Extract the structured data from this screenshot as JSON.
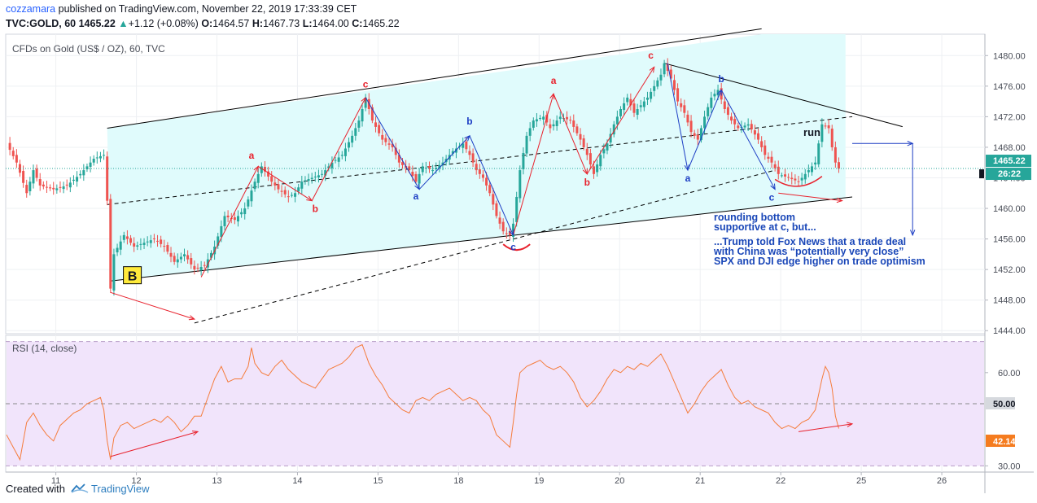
{
  "header": {
    "author": "cozzamara",
    "published": "published on TradingView.com, November 22, 2019 17:33:39 CET",
    "symbol": "TVC:GOLD, 60",
    "last": "1465.22",
    "change": "+1.12 (+0.08%)",
    "o_label": "O:",
    "o": "1464.57",
    "h_label": "H:",
    "h": "1467.73",
    "l_label": "L:",
    "l": "1464.00",
    "c_label": "C:",
    "c": "1465.22"
  },
  "footer": {
    "created_with": "Created with",
    "brand": "TradingView"
  },
  "colors": {
    "up": "#26a69a",
    "down": "#ef5350",
    "channel_fill": "#e0fbfc",
    "rsi_band": "#f1e4fb",
    "rsi_line": "#f57c3b",
    "red_wave": "#e8222d",
    "blue_wave": "#1d3ec4",
    "note_text": "#1a47b8",
    "price_badge": "#26a69a"
  },
  "chart_data": [
    {
      "type": "candlestick",
      "pane_label": "CFDs on Gold (US$ / OZ), 60, TVC",
      "x_ticks": [
        "11",
        "12",
        "13",
        "14",
        "15",
        "18",
        "19",
        "20",
        "21",
        "22",
        "25",
        "26"
      ],
      "y_ticks": [
        "1444.00",
        "1448.00",
        "1452.00",
        "1456.00",
        "1460.00",
        "1464.00",
        "1468.00",
        "1472.00",
        "1476.00",
        "1480.00"
      ],
      "ylim": [
        1443.6,
        1482.8
      ],
      "last_price": "1465.22",
      "countdown": "26:22",
      "path": [
        [
          0,
          1468.5
        ],
        [
          3,
          1466
        ],
        [
          6,
          1462
        ],
        [
          8,
          1465
        ],
        [
          10,
          1463
        ],
        [
          14,
          1462.5
        ],
        [
          18,
          1463
        ],
        [
          22,
          1464.5
        ],
        [
          26,
          1466.5
        ],
        [
          29,
          1467
        ],
        [
          30,
          1461
        ],
        [
          31,
          1449.5
        ],
        [
          32,
          1454
        ],
        [
          35,
          1456.5
        ],
        [
          38,
          1455
        ],
        [
          41,
          1455.5
        ],
        [
          44,
          1456
        ],
        [
          47,
          1455
        ],
        [
          50,
          1453
        ],
        [
          53,
          1454
        ],
        [
          56,
          1452
        ],
        [
          59,
          1452.5
        ],
        [
          62,
          1455
        ],
        [
          65,
          1459
        ],
        [
          68,
          1458.5
        ],
        [
          71,
          1460
        ],
        [
          74,
          1463.5
        ],
        [
          76,
          1465.5
        ],
        [
          79,
          1463.5
        ],
        [
          81,
          1462.5
        ],
        [
          84,
          1461.5
        ],
        [
          86,
          1462
        ],
        [
          88,
          1463.5
        ],
        [
          91,
          1464
        ],
        [
          94,
          1464.5
        ],
        [
          97,
          1466
        ],
        [
          100,
          1467
        ],
        [
          103,
          1469.5
        ],
        [
          105,
          1471.5
        ],
        [
          107,
          1474.5
        ],
        [
          109,
          1471.5
        ],
        [
          112,
          1469
        ],
        [
          115,
          1468
        ],
        [
          117,
          1466
        ],
        [
          120,
          1465
        ],
        [
          122,
          1463.5
        ],
        [
          124,
          1465.5
        ],
        [
          127,
          1465
        ],
        [
          130,
          1466
        ],
        [
          133,
          1467.5
        ],
        [
          136,
          1468.5
        ],
        [
          138,
          1467
        ],
        [
          140,
          1465
        ],
        [
          142,
          1464
        ],
        [
          144,
          1462
        ],
        [
          146,
          1459
        ],
        [
          148,
          1457
        ],
        [
          150,
          1456.5
        ],
        [
          151,
          1458
        ],
        [
          153,
          1465
        ],
        [
          155,
          1469.5
        ],
        [
          157,
          1471.5
        ],
        [
          160,
          1472
        ],
        [
          162,
          1470.5
        ],
        [
          165,
          1472
        ],
        [
          168,
          1471.5
        ],
        [
          171,
          1469
        ],
        [
          173,
          1467
        ],
        [
          175,
          1464.5
        ],
        [
          177,
          1467
        ],
        [
          179,
          1468.5
        ],
        [
          181,
          1471
        ],
        [
          183,
          1473
        ],
        [
          185,
          1474.5
        ],
        [
          187,
          1472.5
        ],
        [
          189,
          1473.5
        ],
        [
          191,
          1474.5
        ],
        [
          193,
          1476
        ],
        [
          195,
          1477.5
        ],
        [
          196,
          1479
        ],
        [
          198,
          1477
        ],
        [
          200,
          1474
        ],
        [
          202,
          1472.5
        ],
        [
          204,
          1470
        ],
        [
          206,
          1469
        ],
        [
          208,
          1472
        ],
        [
          210,
          1474.5
        ],
        [
          212,
          1475.5
        ],
        [
          214,
          1473
        ],
        [
          216,
          1471.5
        ],
        [
          218,
          1470.5
        ],
        [
          221,
          1471
        ],
        [
          224,
          1469
        ],
        [
          226,
          1467
        ],
        [
          228,
          1466
        ],
        [
          230,
          1464.5
        ],
        [
          233,
          1464
        ],
        [
          236,
          1463.5
        ],
        [
          238,
          1464.5
        ],
        [
          241,
          1466
        ],
        [
          243,
          1471
        ],
        [
          245,
          1470.5
        ],
        [
          246,
          1468
        ],
        [
          247,
          1466
        ],
        [
          248,
          1465.2
        ]
      ],
      "channel": {
        "upper": [
          [
            30,
            1470.5
          ],
          [
            225,
            1483.5
          ]
        ],
        "lower": [
          [
            31,
            1450.5
          ],
          [
            252,
            1461.5
          ]
        ]
      },
      "trend_lines": [
        {
          "from": [
            30,
            1460.5
          ],
          "to": [
            252,
            1472
          ]
        },
        {
          "from": [
            56,
            1445
          ],
          "to": [
            229,
            1465
          ]
        },
        {
          "from": [
            196,
            1479
          ],
          "to": [
            267,
            1470.7
          ]
        }
      ],
      "annotations": {
        "red_arrows": [
          [
            [
              31,
              1449
            ],
            [
              56,
              1445.5
            ]
          ],
          [
            [
              58,
              1451
            ],
            [
              75,
              1465.5
            ]
          ],
          [
            [
              75,
              1465.5
            ],
            [
              91,
              1461
            ]
          ],
          [
            [
              91,
              1461
            ],
            [
              107,
              1474.5
            ]
          ],
          [
            [
              151,
              1456.5
            ],
            [
              163,
              1475
            ]
          ],
          [
            [
              163,
              1475
            ],
            [
              173,
              1464.5
            ]
          ],
          [
            [
              173,
              1464.5
            ],
            [
              193,
              1478.5
            ]
          ],
          [
            [
              230,
              1462
            ],
            [
              249,
              1461
            ]
          ]
        ],
        "blue_arrows": [
          [
            [
              107,
              1474.5
            ],
            [
              123,
              1462.5
            ]
          ],
          [
            [
              123,
              1462.5
            ],
            [
              138,
              1469.5
            ]
          ],
          [
            [
              138,
              1469.5
            ],
            [
              151,
              1456.5
            ]
          ],
          [
            [
              197,
              1479
            ],
            [
              203,
              1465
            ]
          ],
          [
            [
              203,
              1465
            ],
            [
              213,
              1475.5
            ]
          ],
          [
            [
              213,
              1475.5
            ],
            [
              229,
              1462.5
            ]
          ],
          [
            [
              252,
              1468.5
            ],
            [
              270,
              1468.5
            ]
          ],
          [
            [
              270,
              1468.5
            ],
            [
              270,
              1456.5
            ]
          ]
        ],
        "wave_labels": [
          {
            "text": "a",
            "color": "red",
            "at": [
              73,
              1466.5
            ]
          },
          {
            "text": "b",
            "color": "red",
            "at": [
              92,
              1459.5
            ]
          },
          {
            "text": "c",
            "color": "red",
            "at": [
              107,
              1475.8
            ]
          },
          {
            "text": "a",
            "color": "blue",
            "at": [
              122,
              1461.2
            ]
          },
          {
            "text": "b",
            "color": "blue",
            "at": [
              138,
              1471
            ]
          },
          {
            "text": "c",
            "color": "blue",
            "at": [
              151,
              1454.5
            ]
          },
          {
            "text": "a",
            "color": "red",
            "at": [
              163,
              1476.3
            ]
          },
          {
            "text": "b",
            "color": "red",
            "at": [
              173,
              1463
            ]
          },
          {
            "text": "c",
            "color": "red",
            "at": [
              192,
              1479.6
            ]
          },
          {
            "text": "a",
            "color": "blue",
            "at": [
              203,
              1463.5
            ]
          },
          {
            "text": "b",
            "color": "blue",
            "at": [
              213,
              1476.5
            ]
          },
          {
            "text": "c",
            "color": "blue",
            "at": [
              228,
              1461
            ]
          },
          {
            "text": "run",
            "color": "dark",
            "at": [
              240,
              1469.5
            ]
          }
        ],
        "b_badge": "B",
        "notes": [
          "rounding bottom",
          "supportive at c, but...",
          "...Trump told Fox News that a trade deal",
          "with China was “potentially very close”",
          "SPX and DJI edge higher on trade optimism"
        ]
      }
    },
    {
      "type": "line",
      "pane_label": "RSI (14, close)",
      "y_ticks": [
        "30.00",
        "60.00"
      ],
      "level_label": "50.00",
      "last_value": "42.14",
      "ylim": [
        28,
        72
      ],
      "values": [
        [
          0,
          40
        ],
        [
          2,
          36
        ],
        [
          4,
          32
        ],
        [
          6,
          44
        ],
        [
          8,
          47
        ],
        [
          10,
          43
        ],
        [
          12,
          40
        ],
        [
          14,
          38
        ],
        [
          16,
          43
        ],
        [
          18,
          45
        ],
        [
          20,
          47
        ],
        [
          22,
          48
        ],
        [
          24,
          50
        ],
        [
          26,
          51
        ],
        [
          28,
          52
        ],
        [
          29,
          48
        ],
        [
          30,
          38
        ],
        [
          31,
          32
        ],
        [
          32,
          39
        ],
        [
          34,
          43
        ],
        [
          36,
          44
        ],
        [
          38,
          42
        ],
        [
          40,
          43
        ],
        [
          42,
          44
        ],
        [
          44,
          45
        ],
        [
          46,
          44
        ],
        [
          48,
          46
        ],
        [
          50,
          44
        ],
        [
          52,
          41
        ],
        [
          54,
          43
        ],
        [
          56,
          46
        ],
        [
          58,
          46
        ],
        [
          60,
          52
        ],
        [
          62,
          58
        ],
        [
          64,
          62
        ],
        [
          66,
          57
        ],
        [
          68,
          58
        ],
        [
          70,
          58
        ],
        [
          72,
          62
        ],
        [
          73,
          68
        ],
        [
          74,
          63
        ],
        [
          76,
          60
        ],
        [
          78,
          59
        ],
        [
          80,
          62
        ],
        [
          82,
          64
        ],
        [
          84,
          61
        ],
        [
          86,
          59
        ],
        [
          88,
          57
        ],
        [
          90,
          56
        ],
        [
          92,
          55
        ],
        [
          94,
          58
        ],
        [
          96,
          61
        ],
        [
          98,
          62
        ],
        [
          100,
          63
        ],
        [
          102,
          65
        ],
        [
          104,
          68
        ],
        [
          106,
          69
        ],
        [
          108,
          63
        ],
        [
          110,
          59
        ],
        [
          112,
          56
        ],
        [
          114,
          52
        ],
        [
          116,
          50
        ],
        [
          118,
          48
        ],
        [
          120,
          47
        ],
        [
          122,
          51
        ],
        [
          124,
          52
        ],
        [
          126,
          51
        ],
        [
          128,
          53
        ],
        [
          130,
          54
        ],
        [
          132,
          55
        ],
        [
          134,
          53
        ],
        [
          136,
          51
        ],
        [
          138,
          52
        ],
        [
          140,
          51
        ],
        [
          142,
          48
        ],
        [
          144,
          46
        ],
        [
          146,
          40
        ],
        [
          148,
          38
        ],
        [
          150,
          36
        ],
        [
          151,
          44
        ],
        [
          152,
          53
        ],
        [
          153,
          60
        ],
        [
          155,
          62
        ],
        [
          157,
          63
        ],
        [
          159,
          64
        ],
        [
          161,
          62
        ],
        [
          163,
          61
        ],
        [
          165,
          62
        ],
        [
          167,
          60
        ],
        [
          169,
          57
        ],
        [
          171,
          52
        ],
        [
          173,
          49
        ],
        [
          175,
          51
        ],
        [
          177,
          54
        ],
        [
          179,
          58
        ],
        [
          181,
          61
        ],
        [
          183,
          60
        ],
        [
          185,
          62
        ],
        [
          187,
          61
        ],
        [
          189,
          63
        ],
        [
          191,
          62
        ],
        [
          193,
          64
        ],
        [
          195,
          66
        ],
        [
          197,
          62
        ],
        [
          199,
          57
        ],
        [
          201,
          52
        ],
        [
          203,
          47
        ],
        [
          205,
          50
        ],
        [
          207,
          54
        ],
        [
          209,
          57
        ],
        [
          211,
          59
        ],
        [
          213,
          61
        ],
        [
          215,
          56
        ],
        [
          217,
          52
        ],
        [
          219,
          50
        ],
        [
          221,
          51
        ],
        [
          223,
          49
        ],
        [
          225,
          48
        ],
        [
          227,
          47
        ],
        [
          229,
          44
        ],
        [
          231,
          42
        ],
        [
          233,
          43
        ],
        [
          235,
          42
        ],
        [
          237,
          44
        ],
        [
          239,
          45
        ],
        [
          241,
          48
        ],
        [
          243,
          58
        ],
        [
          244,
          62
        ],
        [
          245,
          60
        ],
        [
          246,
          55
        ],
        [
          247,
          46
        ],
        [
          248,
          42
        ]
      ],
      "annotations": {
        "red_arrows": [
          [
            [
              31,
              33
            ],
            [
              57,
              41
            ]
          ],
          [
            [
              236,
              41
            ],
            [
              252,
              43.5
            ]
          ]
        ]
      }
    }
  ]
}
